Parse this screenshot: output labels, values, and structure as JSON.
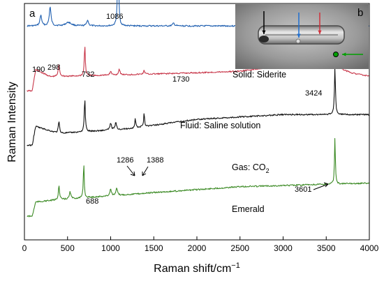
{
  "chart_data": {
    "type": "line",
    "panel_a_label": "a",
    "panel_b_label": "b",
    "xlabel": "Raman shift/cm",
    "xlabel_sup": "−1",
    "ylabel": "Raman Intensity",
    "xlim": [
      0,
      4000
    ],
    "x_ticks": [
      0,
      500,
      1000,
      1500,
      2000,
      2500,
      3000,
      3500,
      4000
    ],
    "y_ticks_shown": false,
    "series": [
      {
        "name": "Solid: Siderite",
        "color": "#1f5fb0",
        "baseline": 0.095,
        "peaks": [
          [
            190,
            0.045,
            12
          ],
          [
            298,
            0.08,
            12
          ],
          [
            510,
            0.015,
            40
          ],
          [
            732,
            0.025,
            12
          ],
          [
            1086,
            0.37,
            7
          ],
          [
            1730,
            0.012,
            12
          ]
        ],
        "background": [
          [
            0,
            0.0
          ],
          [
            4000,
            0.0
          ]
        ]
      },
      {
        "name": "Fluid: Saline solution",
        "color": "#c8374a",
        "baseline": 0.31,
        "peaks": [
          [
            400,
            0.05,
            10
          ],
          [
            700,
            0.13,
            7
          ],
          [
            1000,
            0.015,
            12
          ],
          [
            1100,
            0.025,
            10
          ],
          [
            1388,
            0.015,
            10
          ],
          [
            3424,
            0.11,
            170
          ],
          [
            3601,
            0.17,
            8
          ]
        ],
        "background": [
          [
            0,
            -0.06
          ],
          [
            90,
            -0.06
          ],
          [
            130,
            0.03
          ],
          [
            300,
            0.0
          ],
          [
            2500,
            0.02
          ],
          [
            3000,
            0.04
          ],
          [
            3300,
            0.09
          ],
          [
            3500,
            0.1
          ],
          [
            3650,
            0.0
          ],
          [
            4000,
            -0.005
          ]
        ]
      },
      {
        "name_parts": [
          "Gas: CO",
          "2"
        ],
        "color": "#111111",
        "baseline": 0.55,
        "peaks": [
          [
            400,
            0.05,
            9
          ],
          [
            700,
            0.14,
            7
          ],
          [
            1000,
            0.03,
            10
          ],
          [
            1060,
            0.03,
            10
          ],
          [
            1286,
            0.04,
            6
          ],
          [
            1388,
            0.06,
            6
          ],
          [
            3601,
            0.2,
            7
          ]
        ],
        "background": [
          [
            0,
            -0.05
          ],
          [
            90,
            -0.05
          ],
          [
            130,
            0.03
          ],
          [
            400,
            0.0
          ],
          [
            1200,
            0.02
          ],
          [
            2000,
            0.06
          ],
          [
            3000,
            0.08
          ],
          [
            3580,
            0.08
          ],
          [
            4000,
            0.08
          ]
        ]
      },
      {
        "name": "Emerald",
        "color": "#3d8b26",
        "baseline": 0.83,
        "peaks": [
          [
            400,
            0.06,
            8
          ],
          [
            530,
            0.03,
            10
          ],
          [
            688,
            0.15,
            6
          ],
          [
            1000,
            0.03,
            10
          ],
          [
            1070,
            0.03,
            10
          ],
          [
            3601,
            0.2,
            6
          ]
        ],
        "background": [
          [
            0,
            -0.07
          ],
          [
            90,
            -0.07
          ],
          [
            130,
            -0.01
          ],
          [
            400,
            0.0
          ],
          [
            1500,
            0.03
          ],
          [
            2500,
            0.055
          ],
          [
            3500,
            0.065
          ],
          [
            4000,
            0.07
          ]
        ]
      }
    ],
    "peak_labels": [
      {
        "text": "190",
        "x": 190,
        "series": 0
      },
      {
        "text": "298",
        "x": 298,
        "series": 0
      },
      {
        "text": "732",
        "x": 732,
        "series": 0
      },
      {
        "text": "1086",
        "x": 1086,
        "series": 0
      },
      {
        "text": "1730",
        "x": 1730,
        "series": 0
      },
      {
        "text": "3424",
        "x": 3424,
        "series": 1
      },
      {
        "text": "1286",
        "x": 1286,
        "series": 2
      },
      {
        "text": "1388",
        "x": 1388,
        "series": 2
      },
      {
        "text": "688",
        "x": 688,
        "series": 3
      },
      {
        "text": "3601",
        "x": 3601,
        "series": 3
      }
    ]
  },
  "inset": {
    "arrow_colors": [
      "#000000",
      "#1f6fd0",
      "#d0303a",
      "#00a000"
    ]
  }
}
